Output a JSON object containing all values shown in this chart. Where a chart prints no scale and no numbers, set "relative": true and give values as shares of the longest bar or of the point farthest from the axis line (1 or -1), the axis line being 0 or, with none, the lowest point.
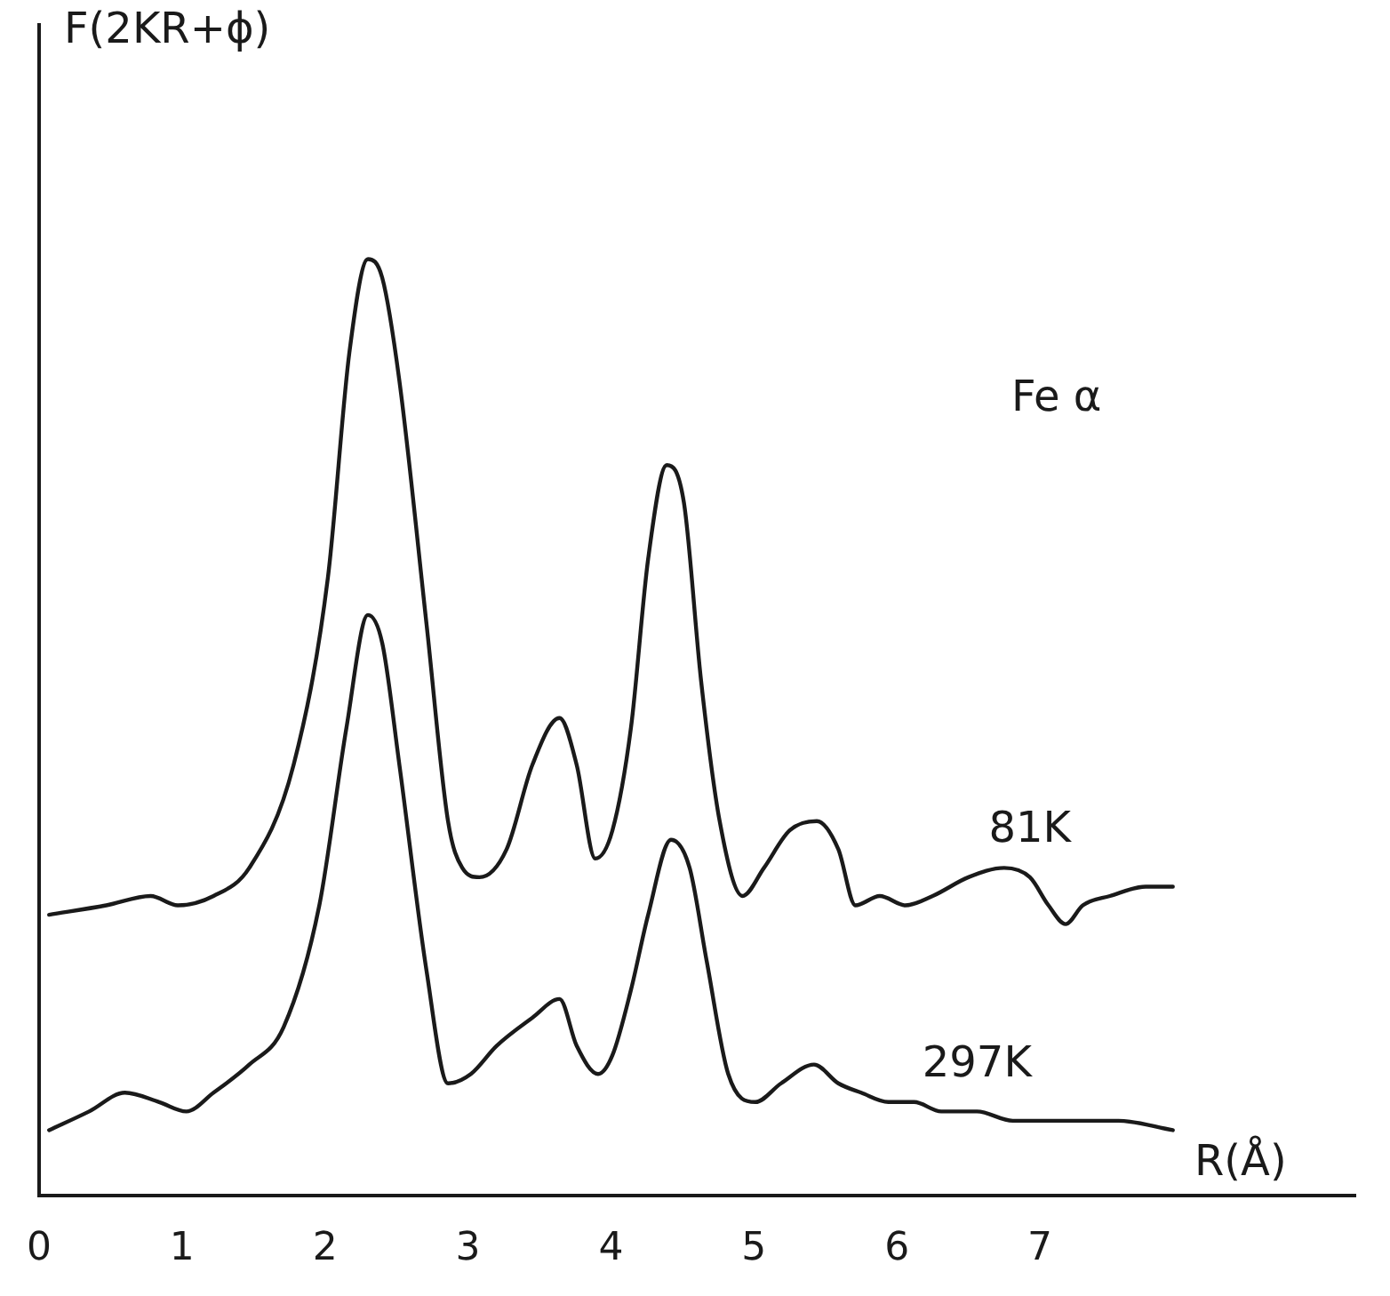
{
  "chart_data": {
    "type": "line",
    "relative": true,
    "xlabel": "R(Å)",
    "ylabel": "F(2KR+ϕ)",
    "annotations": [
      "Fe α"
    ],
    "xlim": [
      0,
      9.2
    ],
    "xticks": [
      0,
      1,
      2,
      3,
      4,
      5,
      6,
      7
    ],
    "grid": false,
    "legend": false,
    "marker": "none",
    "line_style": "solid",
    "series": [
      {
        "name": "81K",
        "color": "#1a1a1a",
        "x": [
          0.07,
          0.47,
          0.78,
          0.97,
          1.22,
          1.47,
          1.78,
          2.02,
          2.17,
          2.3,
          2.4,
          2.52,
          2.71,
          2.86,
          2.96,
          3.08,
          3.27,
          3.45,
          3.64,
          3.76,
          3.89,
          4.01,
          4.14,
          4.26,
          4.39,
          4.51,
          4.63,
          4.76,
          4.92,
          5.07,
          5.25,
          5.44,
          5.59,
          5.71,
          5.88,
          6.06,
          6.25,
          6.5,
          6.75,
          6.93,
          7.06,
          7.18,
          7.3,
          7.49,
          7.74,
          7.93
        ],
        "values": [
          0.3,
          0.31,
          0.32,
          0.31,
          0.32,
          0.35,
          0.46,
          0.66,
          0.9,
          1.0,
          0.98,
          0.87,
          0.61,
          0.4,
          0.35,
          0.34,
          0.37,
          0.46,
          0.51,
          0.46,
          0.36,
          0.39,
          0.5,
          0.68,
          0.78,
          0.74,
          0.55,
          0.4,
          0.32,
          0.35,
          0.39,
          0.4,
          0.37,
          0.31,
          0.32,
          0.31,
          0.32,
          0.34,
          0.35,
          0.34,
          0.31,
          0.29,
          0.31,
          0.32,
          0.33,
          0.33
        ]
      },
      {
        "name": "297K",
        "color": "#1a1a1a",
        "x": [
          0.07,
          0.35,
          0.6,
          0.84,
          1.03,
          1.22,
          1.47,
          1.71,
          1.96,
          2.15,
          2.3,
          2.4,
          2.52,
          2.71,
          2.86,
          3.02,
          3.2,
          3.45,
          3.64,
          3.76,
          3.91,
          4.01,
          4.14,
          4.26,
          4.42,
          4.55,
          4.67,
          4.82,
          5.01,
          5.19,
          5.42,
          5.59,
          5.75,
          5.94,
          6.12,
          6.31,
          6.56,
          6.81,
          7.06,
          7.3,
          7.55,
          7.93
        ],
        "values": [
          0.07,
          0.09,
          0.11,
          0.1,
          0.09,
          0.11,
          0.14,
          0.18,
          0.31,
          0.5,
          0.62,
          0.59,
          0.46,
          0.24,
          0.12,
          0.13,
          0.16,
          0.19,
          0.21,
          0.16,
          0.13,
          0.15,
          0.22,
          0.3,
          0.38,
          0.35,
          0.25,
          0.13,
          0.1,
          0.12,
          0.14,
          0.12,
          0.11,
          0.1,
          0.1,
          0.09,
          0.09,
          0.08,
          0.08,
          0.08,
          0.08,
          0.07
        ]
      }
    ]
  }
}
